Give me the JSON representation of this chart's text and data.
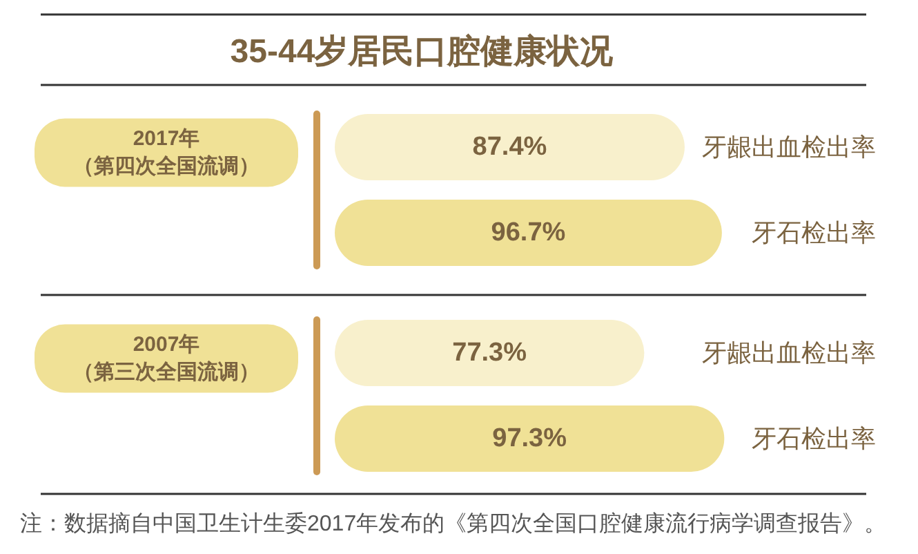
{
  "chart_data": [
    {
      "type": "bar",
      "orientation": "horizontal",
      "title": "35-44岁居民口腔健康状况",
      "subtitle": "2017年（第四次全国流调）",
      "categories": [
        "牙龈出血检出率",
        "牙石检出率"
      ],
      "values": [
        87.4,
        96.7
      ],
      "value_labels": [
        "87.4%",
        "96.7%"
      ],
      "colors": [
        "#f8f0cc",
        "#f0e196"
      ],
      "tick_labels": "y"
    },
    {
      "type": "bar",
      "orientation": "horizontal",
      "subtitle": "2007年（第三次全国流调）",
      "categories": [
        "牙龈出血检出率",
        "牙石检出率"
      ],
      "values": [
        77.3,
        97.3
      ],
      "value_labels": [
        "77.3%",
        "97.3%"
      ],
      "colors": [
        "#f8f0cc",
        "#f0e196"
      ],
      "tick_labels": "y",
      "annotations": [
        "注：数据摘自中国卫生计生委2017年发布的《第四次全国口腔健康流行病学调查报告》。"
      ]
    }
  ]
}
